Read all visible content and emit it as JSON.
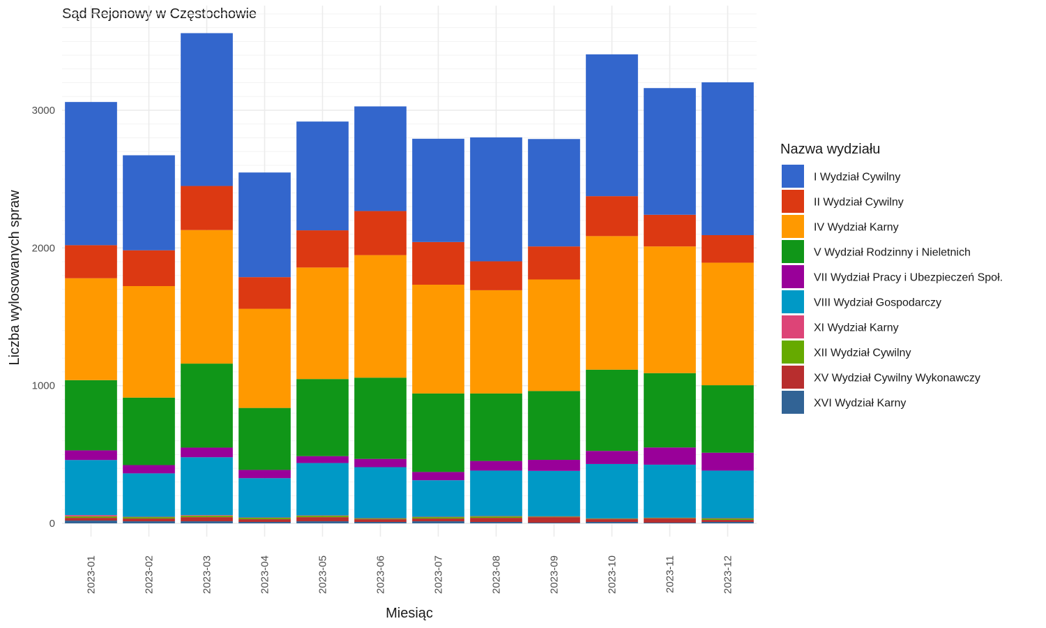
{
  "chart_data": {
    "type": "bar",
    "stacked": true,
    "title": "Sąd Rejonowy w Częstochowie",
    "xlabel": "Miesiąc",
    "ylabel": "Liczba wylosowanych spraw",
    "ylim": [
      0,
      3600
    ],
    "yticks": [
      0,
      1000,
      2000,
      3000
    ],
    "ytick_labels": [
      "0",
      "1000",
      "2000",
      "3000"
    ],
    "grid": true,
    "legend_title": "Nazwa wydziału",
    "legend_position": "right",
    "categories": [
      "2023-01",
      "2023-02",
      "2023-03",
      "2023-04",
      "2023-05",
      "2023-06",
      "2023-07",
      "2023-08",
      "2023-09",
      "2023-10",
      "2023-11",
      "2023-12"
    ],
    "series": [
      {
        "name": "I Wydział Cywilny",
        "color": "#3366CC",
        "values": [
          1040,
          690,
          1110,
          760,
          790,
          760,
          750,
          900,
          780,
          1030,
          920,
          1110
        ]
      },
      {
        "name": "II Wydział Cywilny",
        "color": "#DC3912",
        "values": [
          240,
          260,
          320,
          230,
          270,
          320,
          310,
          210,
          240,
          290,
          230,
          200
        ]
      },
      {
        "name": "IV Wydział Karny",
        "color": "#FF9900",
        "values": [
          740,
          810,
          970,
          720,
          810,
          890,
          790,
          750,
          810,
          970,
          920,
          890
        ]
      },
      {
        "name": "V Wydział Rodzinny i Nieletnich",
        "color": "#109618",
        "values": [
          510,
          490,
          610,
          450,
          560,
          590,
          570,
          490,
          500,
          590,
          540,
          490
        ]
      },
      {
        "name": "VII Wydział Pracy i Ubezpieczeń Społ.",
        "color": "#990099",
        "values": [
          70,
          60,
          70,
          60,
          50,
          60,
          60,
          70,
          80,
          95,
          125,
          130
        ]
      },
      {
        "name": "VIII Wydział Gospodarczy",
        "color": "#0099C6",
        "values": [
          400,
          315,
          420,
          285,
          380,
          370,
          265,
          330,
          330,
          395,
          385,
          345
        ]
      },
      {
        "name": "XI Wydział Karny",
        "color": "#DD4477",
        "values": [
          10,
          3,
          5,
          3,
          3,
          3,
          3,
          3,
          3,
          3,
          3,
          3
        ]
      },
      {
        "name": "XII Wydział Cywilny",
        "color": "#66AA00",
        "values": [
          10,
          10,
          10,
          10,
          10,
          5,
          10,
          10,
          3,
          3,
          3,
          10
        ]
      },
      {
        "name": "XV Wydział Cywilny Wykonawczy",
        "color": "#B82E2E",
        "values": [
          20,
          20,
          30,
          20,
          30,
          20,
          20,
          30,
          40,
          20,
          30,
          15
        ]
      },
      {
        "name": "XVI Wydział Karny",
        "color": "#316395",
        "values": [
          20,
          15,
          15,
          10,
          15,
          10,
          15,
          10,
          5,
          10,
          5,
          10
        ]
      }
    ]
  }
}
